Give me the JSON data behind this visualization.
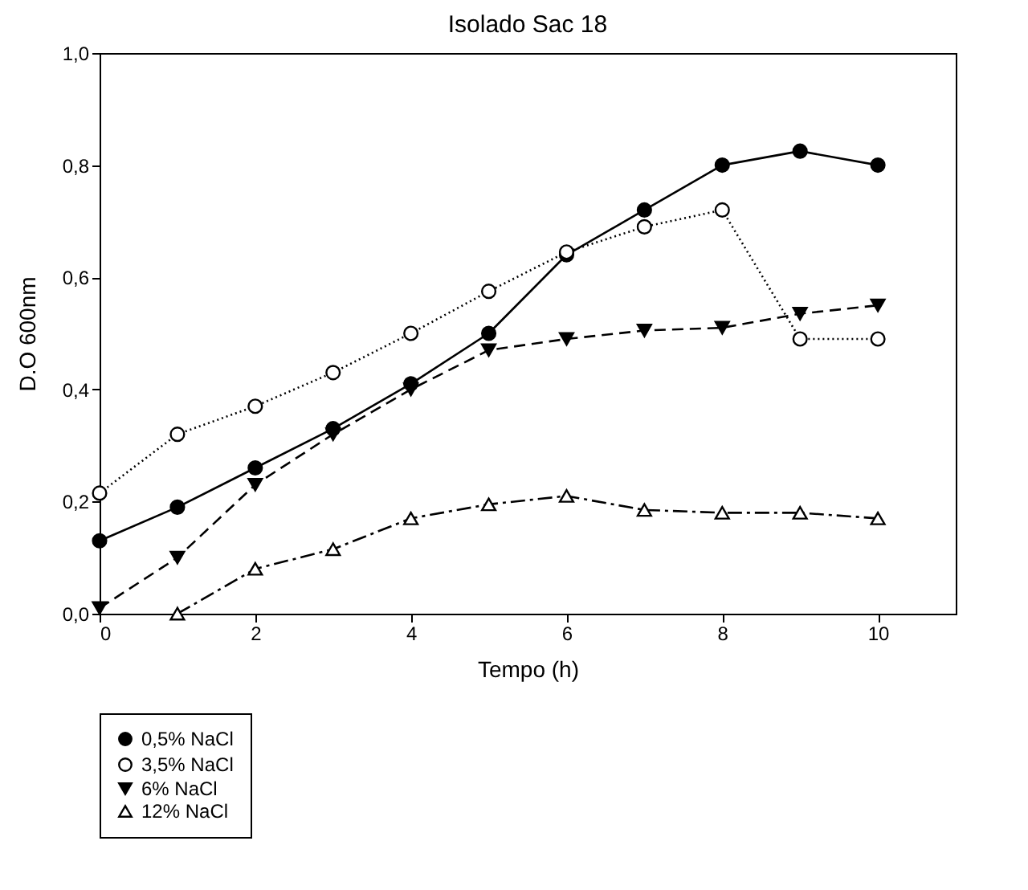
{
  "chart_data": {
    "type": "line",
    "title": "Isolado Sac 18",
    "xlabel": "Tempo (h)",
    "ylabel": "D.O 600nm",
    "x": [
      0,
      1,
      2,
      3,
      4,
      5,
      6,
      7,
      8,
      9,
      10
    ],
    "series": [
      {
        "name": "0,5% NaCl",
        "color": "#000000",
        "marker": "circle",
        "line_style": "solid",
        "values": [
          0.13,
          0.19,
          0.26,
          0.33,
          0.41,
          0.5,
          0.64,
          0.72,
          0.8,
          0.825,
          0.8
        ]
      },
      {
        "name": "3,5% NaCl",
        "color": "#000000",
        "marker": "circle-open",
        "line_style": "dotted",
        "values": [
          0.215,
          0.32,
          0.37,
          0.43,
          0.5,
          0.575,
          0.645,
          0.69,
          0.72,
          0.49,
          0.49
        ]
      },
      {
        "name": "6% NaCl",
        "color": "#000000",
        "marker": "triangle-down",
        "line_style": "dashed",
        "values": [
          0.01,
          0.1,
          0.23,
          0.32,
          0.4,
          0.47,
          0.49,
          0.505,
          0.51,
          0.535,
          0.55
        ]
      },
      {
        "name": "12% NaCl",
        "color": "#000000",
        "marker": "triangle-open",
        "line_style": "dashdot",
        "values": [
          null,
          0.0,
          0.08,
          0.115,
          0.17,
          0.195,
          0.21,
          0.185,
          0.18,
          0.18,
          0.17
        ]
      }
    ],
    "xlim": [
      0,
      11
    ],
    "xticks": [
      0,
      2,
      4,
      6,
      8,
      10
    ],
    "ylim": [
      0,
      1
    ],
    "yticks": [
      {
        "value": 0,
        "label": "0,0"
      },
      {
        "value": 0.2,
        "label": "0,2"
      },
      {
        "value": 0.4,
        "label": "0,4"
      },
      {
        "value": 0.6,
        "label": "0,6"
      },
      {
        "value": 0.8,
        "label": "0,8"
      },
      {
        "value": 1,
        "label": "1,0"
      }
    ],
    "grid": false,
    "legend": "bottom left"
  }
}
